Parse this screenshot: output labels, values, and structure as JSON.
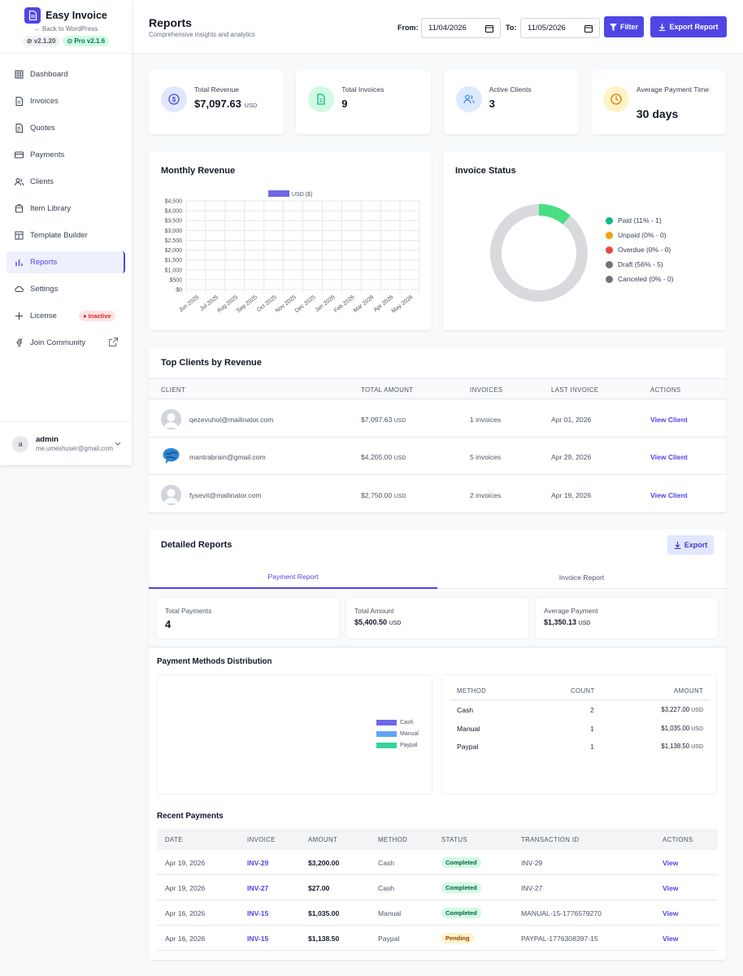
{
  "brand": {
    "title": "Easy Invoice",
    "back": "← Back to WordPress",
    "version": "v2.1.20",
    "pro": "Pro v2.1.6"
  },
  "nav": [
    {
      "label": "Dashboard",
      "icon": "grid-icon"
    },
    {
      "label": "Invoices",
      "icon": "document-icon"
    },
    {
      "label": "Quotes",
      "icon": "quote-icon"
    },
    {
      "label": "Payments",
      "icon": "credit-card-icon"
    },
    {
      "label": "Clients",
      "icon": "users-icon"
    },
    {
      "label": "Item Library",
      "icon": "box-icon"
    },
    {
      "label": "Template Builder",
      "icon": "template-icon"
    },
    {
      "label": "Reports",
      "icon": "bar-chart-icon",
      "active": true
    },
    {
      "label": "Settings",
      "icon": "cloud-icon"
    },
    {
      "label": "License",
      "icon": "plus-icon",
      "badge": "Inactive"
    },
    {
      "label": "Join Community",
      "icon": "facebook-icon"
    }
  ],
  "user": {
    "avatar": "a",
    "name": "admin",
    "email": "me.umeshuser@gmail.com"
  },
  "header": {
    "title": "Reports",
    "subtitle": "Comprehensive insights and analytics",
    "from_label": "From:",
    "from_value": "11/04/2026",
    "to_label": "To:",
    "to_value": "11/05/2026",
    "filter": "Filter",
    "export": "Export Report"
  },
  "stats": [
    {
      "label": "Total Revenue",
      "value": "$7,097.63",
      "unit": "USD",
      "color": "#4f46e5"
    },
    {
      "label": "Total Invoices",
      "value": "9",
      "unit": "",
      "color": "#10b981"
    },
    {
      "label": "Active Clients",
      "value": "3",
      "unit": "",
      "color": "#3b82f6"
    },
    {
      "label": "Average Payment Time",
      "value": "30 days",
      "unit": "",
      "color": "#d97706"
    }
  ],
  "monthly": {
    "title": "Monthly Revenue",
    "chart_data": {
      "type": "bar",
      "title": "",
      "legend": [
        "USD ($)"
      ],
      "categories": [
        "Jun 2025",
        "Jul 2025",
        "Aug 2025",
        "Sep 2025",
        "Oct 2025",
        "Nov 2025",
        "Dec 2025",
        "Jan 2026",
        "Feb 2026",
        "Mar 2026",
        "Apr 2026",
        "May 2026"
      ],
      "series": [
        {
          "name": "USD ($)",
          "values": [
            0,
            0,
            0,
            0,
            0,
            0,
            0,
            0,
            0,
            0,
            0,
            0
          ]
        }
      ],
      "yticks": [
        "$4,500",
        "$4,000",
        "$3,500",
        "$3,000",
        "$2,500",
        "$2,000",
        "$1,500",
        "$1,000",
        "$500",
        "$0"
      ],
      "ylim": [
        0,
        4500
      ],
      "grid": true,
      "color": "#6f67e9"
    }
  },
  "status": {
    "title": "Invoice Status",
    "chart_data": {
      "type": "pie",
      "categories": [
        "Paid",
        "Unpaid",
        "Overdue",
        "Draft",
        "Canceled"
      ],
      "values": [
        1,
        0,
        0,
        5,
        0
      ],
      "colors": [
        "#10b981",
        "#f59e0b",
        "#ef4444",
        "#6b7280",
        "#6b7280"
      ]
    },
    "legend": [
      "Paid (11% - 1)",
      "Unpaid (0% - 0)",
      "Overdue (0% - 0)",
      "Draft (56% - 5)",
      "Canceled (0% - 0)"
    ]
  },
  "top_clients": {
    "title": "Top Clients by Revenue",
    "headers": [
      "CLIENT",
      "TOTAL AMOUNT",
      "INVOICES",
      "LAST INVOICE",
      "ACTIONS"
    ],
    "rows": [
      {
        "client": "qezevuhol@mailinator.com",
        "amount": "$7,097.63",
        "unit": "USD",
        "invoices": "1 invoices",
        "last": "Apr 01, 2026",
        "action": "View Client"
      },
      {
        "client": "mantrabrain@gmail.com",
        "amount": "$4,205.00",
        "unit": "USD",
        "invoices": "5 invoices",
        "last": "Apr 29, 2026",
        "action": "View Client"
      },
      {
        "client": "fysevit@mailinator.com",
        "amount": "$2,750.00",
        "unit": "USD",
        "invoices": "2 invoices",
        "last": "Apr 19, 2026",
        "action": "View Client"
      }
    ]
  },
  "detailed": {
    "title": "Detailed Reports",
    "export": "Export",
    "tabs": [
      "Payment Report",
      "Invoice Report"
    ],
    "summary": [
      {
        "label": "Total Payments",
        "value": "4",
        "unit": ""
      },
      {
        "label": "Total Amount",
        "value": "$5,400.50",
        "unit": "USD"
      },
      {
        "label": "Average Payment",
        "value": "$1,350.13",
        "unit": "USD"
      }
    ],
    "methods_title": "Payment Methods Distribution",
    "methods_chart": {
      "type": "pie",
      "categories": [
        "Cash",
        "Manual",
        "Paypal"
      ],
      "colors": [
        "#6f67e9",
        "#60a5fa",
        "#34d399"
      ]
    },
    "methods_headers": [
      "METHOD",
      "COUNT",
      "AMOUNT"
    ],
    "methods": [
      {
        "method": "Cash",
        "count": "2",
        "amount": "$3,227.00",
        "unit": "USD"
      },
      {
        "method": "Manual",
        "count": "1",
        "amount": "$1,035.00",
        "unit": "USD"
      },
      {
        "method": "Paypal",
        "count": "1",
        "amount": "$1,138.50",
        "unit": "USD"
      }
    ],
    "recent_title": "Recent Payments",
    "recent_headers": [
      "DATE",
      "INVOICE",
      "AMOUNT",
      "METHOD",
      "STATUS",
      "TRANSACTION ID",
      "ACTIONS"
    ],
    "recent": [
      {
        "date": "Apr 19, 2026",
        "invoice": "INV-29",
        "amount": "$3,200.00",
        "method": "Cash",
        "status": "Completed",
        "txn": "INV-29",
        "action": "View"
      },
      {
        "date": "Apr 19, 2026",
        "invoice": "INV-27",
        "amount": "$27.00",
        "method": "Cash",
        "status": "Completed",
        "txn": "INV-27",
        "action": "View"
      },
      {
        "date": "Apr 16, 2026",
        "invoice": "INV-15",
        "amount": "$1,035.00",
        "method": "Manual",
        "status": "Completed",
        "txn": "MANUAL-15-1776579270",
        "action": "View"
      },
      {
        "date": "Apr 16, 2026",
        "invoice": "INV-15",
        "amount": "$1,138.50",
        "method": "Paypal",
        "status": "Pending",
        "txn": "PAYPAL-1776308397-15",
        "action": "View"
      }
    ]
  }
}
